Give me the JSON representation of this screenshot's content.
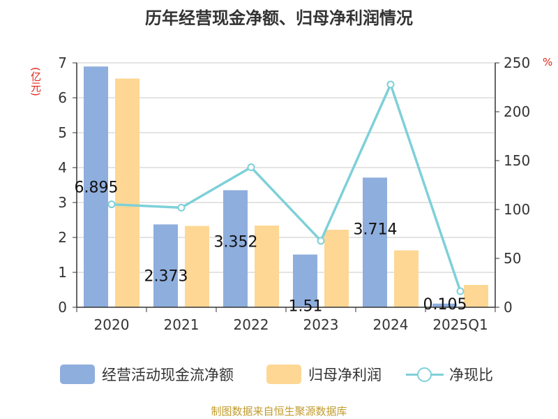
{
  "title": "历年经营现金净额、归母净利润情况",
  "source": "制图数据来自恒生聚源数据库",
  "chart_data": {
    "type": "bar",
    "categories": [
      "2020",
      "2021",
      "2022",
      "2023",
      "2024",
      "2025Q1"
    ],
    "y_left": {
      "unit": "(亿元)",
      "ticks": [
        "0",
        "1",
        "2",
        "3",
        "4",
        "5",
        "6",
        "7"
      ],
      "ylim": [
        0,
        7
      ]
    },
    "y_right": {
      "unit": "%",
      "ticks": [
        "0",
        "50",
        "100",
        "150",
        "200",
        "250"
      ],
      "ylim": [
        0,
        250
      ]
    },
    "grid": true,
    "legend_position": "bottom",
    "series": [
      {
        "name": "经营活动现金流净额",
        "type": "bar",
        "axis": "left",
        "color": "#8eaedd",
        "values": [
          6.895,
          2.373,
          3.352,
          1.51,
          3.714,
          0.105
        ],
        "labels": [
          "6.895",
          "2.373",
          "3.352",
          "1.51",
          "3.714",
          "0.105"
        ]
      },
      {
        "name": "归母净利润",
        "type": "bar",
        "axis": "left",
        "color": "#fed794",
        "values": [
          6.55,
          2.33,
          2.34,
          2.22,
          1.63,
          0.64
        ]
      },
      {
        "name": "净现比",
        "type": "line",
        "axis": "right",
        "color": "#7ed0d8",
        "values": [
          105.3,
          101.9,
          143.2,
          68.0,
          227.9,
          16.4
        ]
      }
    ]
  }
}
